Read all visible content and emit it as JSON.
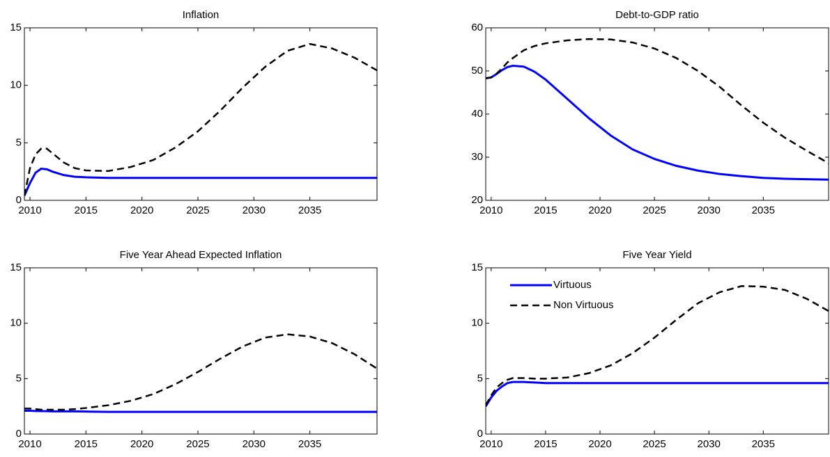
{
  "chart_data": [
    {
      "type": "line",
      "title": "Inflation",
      "x": [
        2009.5,
        2010,
        2010.5,
        2011,
        2011.5,
        2012,
        2013,
        2014,
        2015,
        2017,
        2019,
        2021,
        2023,
        2025,
        2027,
        2029,
        2031,
        2033,
        2035,
        2037,
        2039,
        2041
      ],
      "series": [
        {
          "color": "#0000ff",
          "linestyle": "solid",
          "values": [
            0.4,
            1.5,
            2.4,
            2.75,
            2.7,
            2.5,
            2.2,
            2.05,
            2.0,
            1.95,
            1.95,
            1.95,
            1.95,
            1.95,
            1.95,
            1.95,
            1.95,
            1.95,
            1.95,
            1.95,
            1.95,
            1.95
          ]
        },
        {
          "color": "#000000",
          "linestyle": "dashed",
          "values": [
            0.4,
            2.8,
            4.0,
            4.5,
            4.5,
            4.1,
            3.3,
            2.8,
            2.6,
            2.55,
            2.9,
            3.5,
            4.6,
            6.0,
            7.8,
            9.8,
            11.6,
            13.0,
            13.6,
            13.2,
            12.4,
            11.3
          ]
        }
      ],
      "xlim": [
        2009.5,
        2041
      ],
      "xticks": [
        2010,
        2015,
        2020,
        2025,
        2030,
        2035
      ],
      "ylim": [
        0,
        15
      ],
      "yticks": [
        0,
        5,
        10,
        15
      ]
    },
    {
      "type": "line",
      "title": "Debt-to-GDP ratio",
      "x": [
        2009.5,
        2010,
        2010.5,
        2011,
        2011.5,
        2012,
        2013,
        2014,
        2015,
        2017,
        2019,
        2021,
        2023,
        2025,
        2027,
        2029,
        2031,
        2033,
        2035,
        2037,
        2039,
        2041
      ],
      "series": [
        {
          "color": "#0000ff",
          "linestyle": "solid",
          "values": [
            48.3,
            48.5,
            49.3,
            50.2,
            50.9,
            51.2,
            51.0,
            49.8,
            48,
            43.5,
            39,
            35,
            31.8,
            29.6,
            28,
            26.9,
            26.1,
            25.6,
            25.2,
            25,
            24.9,
            24.8
          ]
        },
        {
          "color": "#000000",
          "linestyle": "dashed",
          "values": [
            48.3,
            48.5,
            49.4,
            50.6,
            52,
            53,
            54.8,
            55.8,
            56.4,
            57.1,
            57.4,
            57.3,
            56.6,
            55.2,
            53,
            50,
            46.3,
            42,
            38,
            34.5,
            31.5,
            28.6
          ]
        }
      ],
      "xlim": [
        2009.5,
        2041
      ],
      "xticks": [
        2010,
        2015,
        2020,
        2025,
        2030,
        2035
      ],
      "ylim": [
        20,
        60
      ],
      "yticks": [
        20,
        30,
        40,
        50,
        60
      ]
    },
    {
      "type": "line",
      "title": "Five Year Ahead Expected Inflation",
      "x": [
        2009.5,
        2010,
        2010.5,
        2011,
        2011.5,
        2012,
        2013,
        2014,
        2015,
        2017,
        2019,
        2021,
        2023,
        2025,
        2027,
        2029,
        2031,
        2033,
        2035,
        2037,
        2039,
        2041
      ],
      "series": [
        {
          "color": "#0000ff",
          "linestyle": "solid",
          "values": [
            2.1,
            2.1,
            2.08,
            2.07,
            2.06,
            2.05,
            2.05,
            2.05,
            2.03,
            2.0,
            2.0,
            2.0,
            2.0,
            2.0,
            2.0,
            2.0,
            2.0,
            2.0,
            2.0,
            2.0,
            2.0,
            2.0
          ]
        },
        {
          "color": "#000000",
          "linestyle": "dashed",
          "values": [
            2.3,
            2.3,
            2.25,
            2.2,
            2.2,
            2.2,
            2.2,
            2.25,
            2.35,
            2.6,
            3.0,
            3.6,
            4.5,
            5.6,
            6.8,
            7.9,
            8.7,
            9.0,
            8.8,
            8.2,
            7.2,
            5.9
          ]
        }
      ],
      "xlim": [
        2009.5,
        2041
      ],
      "xticks": [
        2010,
        2015,
        2020,
        2025,
        2030,
        2035
      ],
      "ylim": [
        0,
        15
      ],
      "yticks": [
        0,
        5,
        10,
        15
      ]
    },
    {
      "type": "line",
      "title": "Five Year Yield",
      "x": [
        2009.5,
        2010,
        2010.5,
        2011,
        2011.5,
        2012,
        2013,
        2014,
        2015,
        2017,
        2019,
        2021,
        2023,
        2025,
        2027,
        2029,
        2031,
        2033,
        2035,
        2037,
        2039,
        2041
      ],
      "series": [
        {
          "name": "Virtuous",
          "color": "#0000ff",
          "linestyle": "solid",
          "values": [
            2.5,
            3.3,
            3.9,
            4.3,
            4.6,
            4.7,
            4.7,
            4.65,
            4.6,
            4.6,
            4.6,
            4.6,
            4.6,
            4.6,
            4.6,
            4.6,
            4.6,
            4.6,
            4.6,
            4.6,
            4.6,
            4.6
          ]
        },
        {
          "name": "Non Virtuous",
          "color": "#000000",
          "linestyle": "dashed",
          "values": [
            2.6,
            3.5,
            4.2,
            4.6,
            4.9,
            5.05,
            5.05,
            5.0,
            5.0,
            5.1,
            5.5,
            6.2,
            7.3,
            8.7,
            10.3,
            11.8,
            12.8,
            13.35,
            13.3,
            13.0,
            12.2,
            11.1
          ]
        }
      ],
      "xlim": [
        2009.5,
        2041
      ],
      "xticks": [
        2010,
        2015,
        2020,
        2025,
        2030,
        2035
      ],
      "ylim": [
        0,
        15
      ],
      "yticks": [
        0,
        5,
        10,
        15
      ],
      "legend": "upper left"
    }
  ]
}
